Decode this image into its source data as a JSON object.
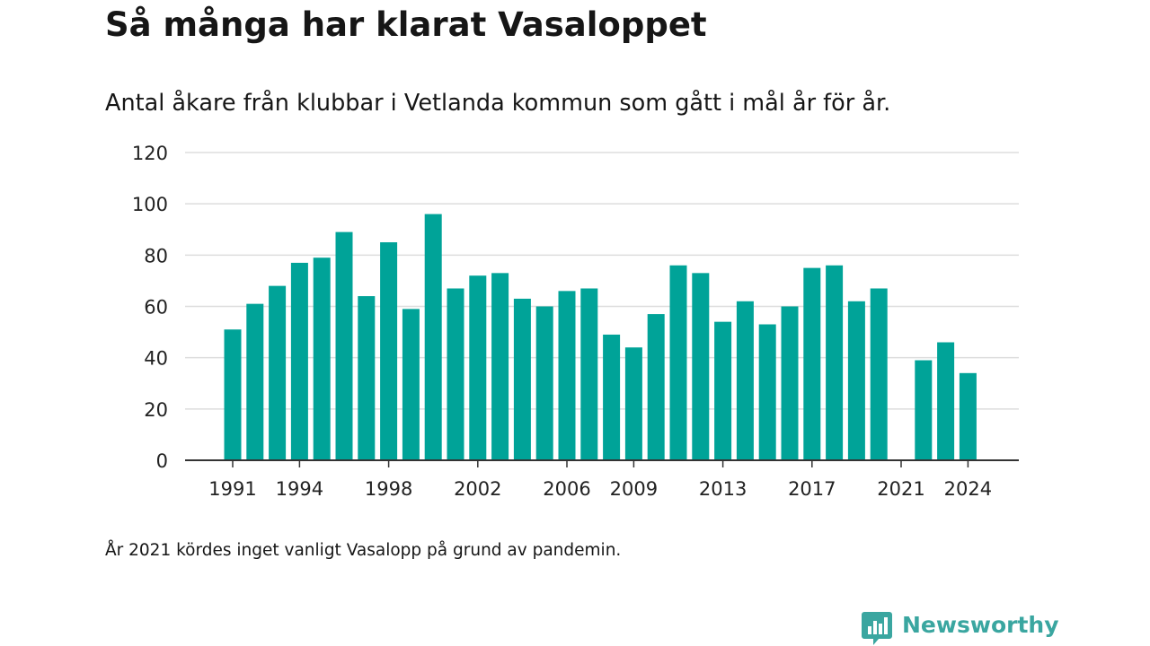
{
  "title": "Så många har klarat Vasaloppet",
  "subtitle": "Antal åkare från klubbar i Vetlanda kommun som gått i mål år för år.",
  "note": "År 2021 kördes inget vanligt Vasalopp på grund av pandemin.",
  "brand": {
    "name": "Newsworthy",
    "color": "#3aa6a0",
    "icon": "newsworthy-logo-icon"
  },
  "colors": {
    "bar": "#00a398",
    "grid": "#dddddd",
    "axis": "#333333"
  },
  "chart_data": {
    "type": "bar",
    "title": "Så många har klarat Vasaloppet",
    "subtitle": "Antal åkare från klubbar i Vetlanda kommun som gått i mål år för år.",
    "xlabel": "",
    "ylabel": "",
    "categories": [
      1991,
      1992,
      1993,
      1994,
      1995,
      1996,
      1997,
      1998,
      1999,
      2000,
      2001,
      2002,
      2003,
      2004,
      2005,
      2006,
      2007,
      2008,
      2009,
      2010,
      2011,
      2012,
      2013,
      2014,
      2015,
      2016,
      2017,
      2018,
      2019,
      2020,
      2021,
      2022,
      2023,
      2024
    ],
    "values": [
      51,
      61,
      68,
      77,
      79,
      89,
      64,
      85,
      59,
      96,
      67,
      72,
      73,
      63,
      60,
      66,
      67,
      49,
      44,
      57,
      76,
      73,
      54,
      62,
      53,
      60,
      75,
      76,
      62,
      67,
      null,
      39,
      46,
      34
    ],
    "x_tick_labels": [
      "1991",
      "1994",
      "1998",
      "2002",
      "2006",
      "2009",
      "2013",
      "2017",
      "2021",
      "2024"
    ],
    "y_ticks": [
      0,
      20,
      40,
      60,
      80,
      100,
      120
    ],
    "ylim": [
      0,
      120
    ],
    "grid": true,
    "legend": "none"
  }
}
